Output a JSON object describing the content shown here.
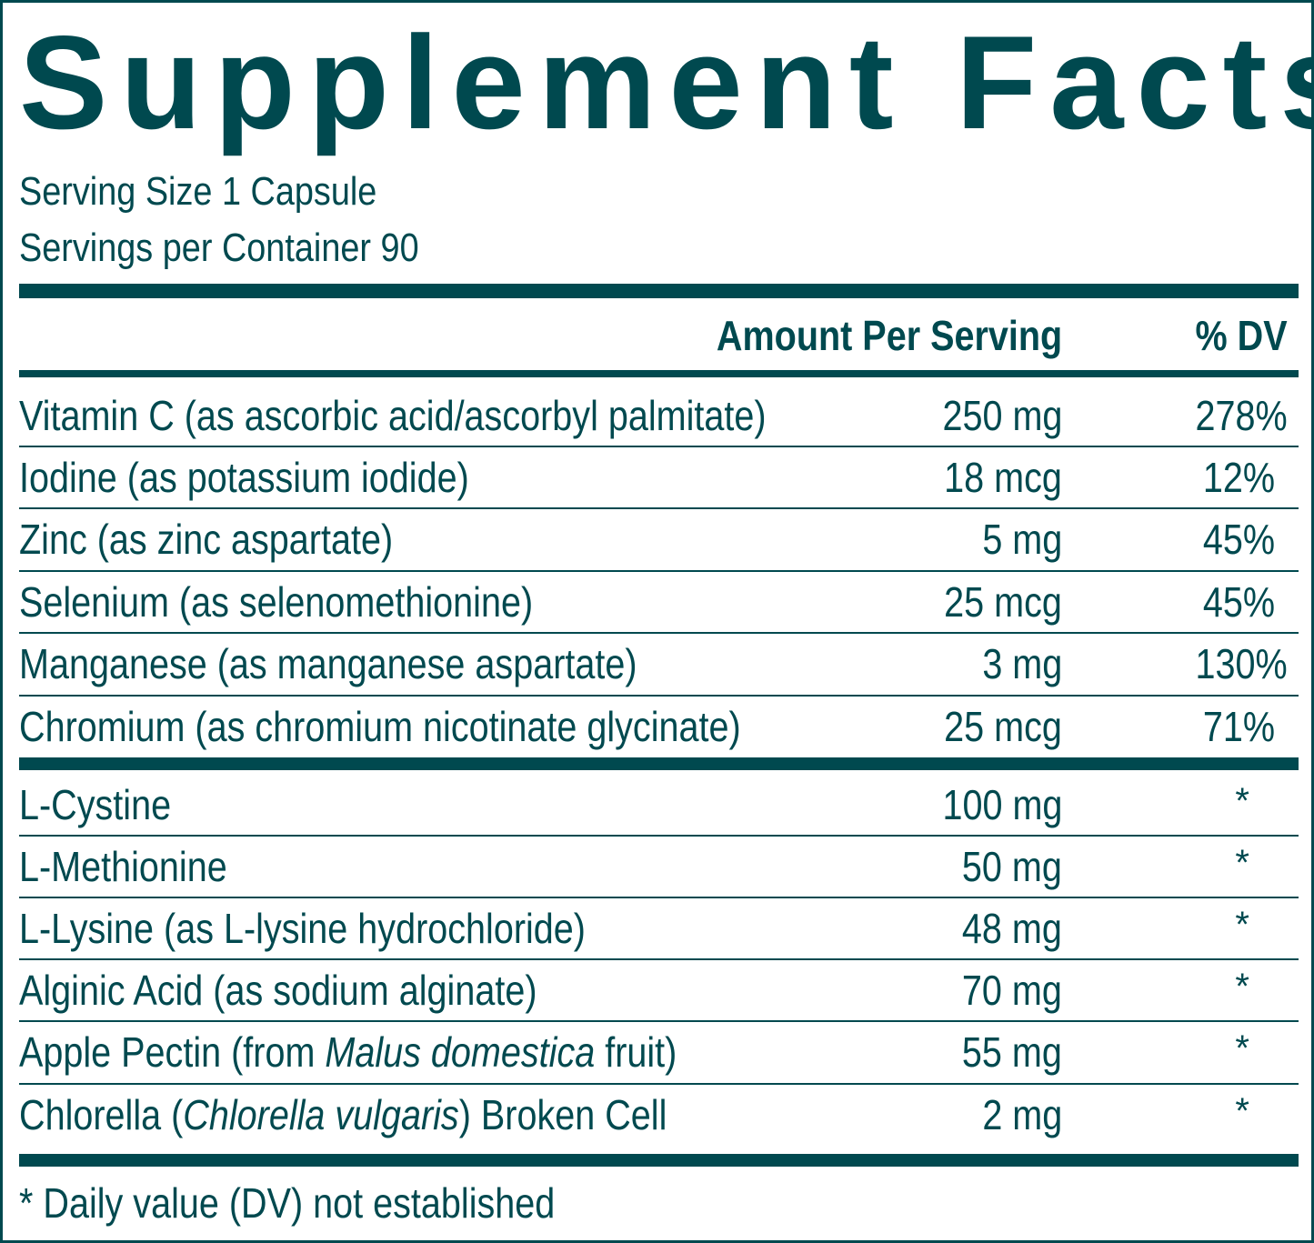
{
  "title": "Supplement Facts",
  "serving_size": "Serving Size 1 Capsule",
  "servings_per_container": "Servings per Container 90",
  "header": {
    "amount": "Amount Per Serving",
    "dv": "% DV"
  },
  "vitamins": [
    {
      "name": "Vitamin C (as ascorbic acid/ascorbyl palmitate)",
      "amount": "250 mg",
      "dv": "278%"
    },
    {
      "name": "Iodine (as potassium iodide)",
      "amount": "18 mcg",
      "dv": "12%"
    },
    {
      "name": "Zinc (as zinc aspartate)",
      "amount": "5 mg",
      "dv": "45%"
    },
    {
      "name": "Selenium (as selenomethionine)",
      "amount": "25 mcg",
      "dv": "45%"
    },
    {
      "name": "Manganese (as manganese aspartate)",
      "amount": "3 mg",
      "dv": "130%"
    },
    {
      "name": "Chromium (as chromium nicotinate glycinate)",
      "amount": "25 mcg",
      "dv": "71%"
    }
  ],
  "others": [
    {
      "name": "L-Cystine",
      "amount": "100 mg",
      "dv": "*"
    },
    {
      "name": "L-Methionine",
      "amount": "50 mg",
      "dv": "*"
    },
    {
      "name": "L-Lysine (as L-lysine hydrochloride)",
      "amount": "48 mg",
      "dv": "*"
    },
    {
      "name": "Alginic Acid (as sodium alginate)",
      "amount": "70 mg",
      "dv": "*"
    },
    {
      "name_pre": "Apple Pectin (from ",
      "name_italic": "Malus domestica",
      "name_post": " fruit)",
      "amount": "55 mg",
      "dv": "*"
    },
    {
      "name_pre": "Chlorella (",
      "name_italic": "Chlorella vulgaris",
      "name_post": ") Broken Cell",
      "amount": "2 mg",
      "dv": "*"
    }
  ],
  "footnote": "* Daily value (DV) not established",
  "colors": {
    "ink": "#00494f",
    "background": "#ffffff"
  }
}
